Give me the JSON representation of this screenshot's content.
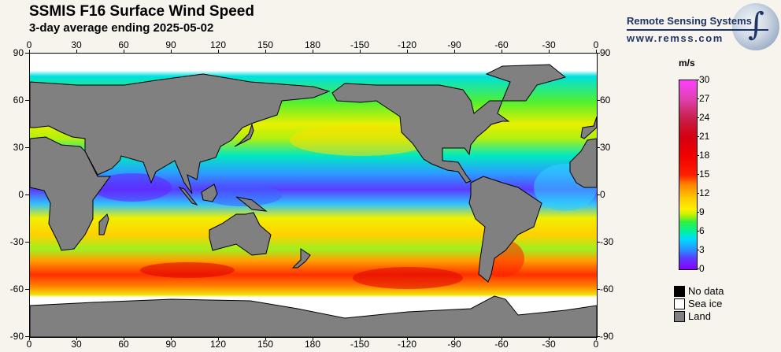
{
  "title": "SSMIS F16 Surface Wind Speed",
  "subtitle": "3-day average ending 2025-05-02",
  "logo": {
    "name": "Remote Sensing Systems",
    "url": "www.remss.com"
  },
  "axes": {
    "lon_labels": [
      "0",
      "30",
      "60",
      "90",
      "120",
      "150",
      "180",
      "-150",
      "-120",
      "-90",
      "-60",
      "-30",
      "0"
    ],
    "lat_labels": [
      "90",
      "60",
      "30",
      "0",
      "-30",
      "-60",
      "-90"
    ]
  },
  "colorbar": {
    "unit": "m/s",
    "labels": [
      "30",
      "27",
      "24",
      "21",
      "18",
      "15",
      "12",
      "9",
      "6",
      "3",
      "0"
    ],
    "min": 0,
    "max": 30
  },
  "legend": [
    {
      "label": "No data",
      "color": "#000000"
    },
    {
      "label": "Sea ice",
      "color": "#ffffff"
    },
    {
      "label": "Land",
      "color": "#808080"
    }
  ],
  "colors": {
    "land": "#808080",
    "sea_ice": "#ffffff"
  }
}
